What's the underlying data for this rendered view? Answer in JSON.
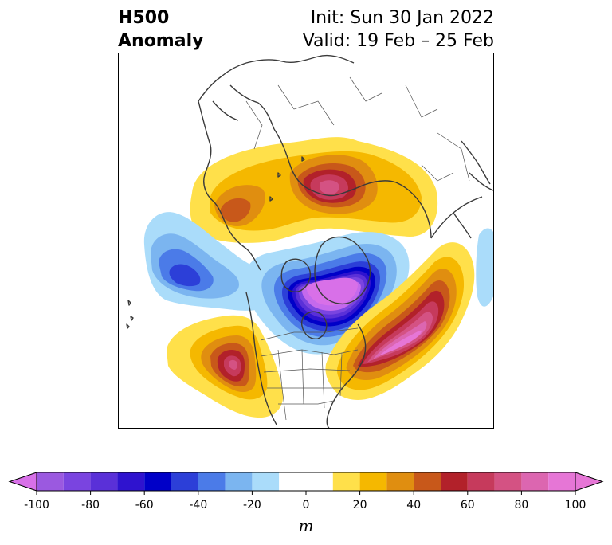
{
  "header": {
    "title_line1": "H500",
    "title_line2": "Anomaly",
    "init_label": "Init: Sun 30 Jan 2022",
    "valid_label": "Valid: 19 Feb – 25 Feb"
  },
  "map": {
    "projection": "north-polar-stereographic",
    "variable": "500 hPa geopotential height anomaly",
    "anomaly_centers": [
      {
        "sign": "positive",
        "region": "eastern Siberia / Kamchatka",
        "peak_m": 70
      },
      {
        "sign": "positive",
        "region": "Bering Sea / Alaska west",
        "peak_m": 40
      },
      {
        "sign": "negative",
        "region": "central Asia",
        "peak_m": -60
      },
      {
        "sign": "negative",
        "region": "Arctic / Greenland / northern Canada",
        "peak_m": -100
      },
      {
        "sign": "positive",
        "region": "western United States",
        "peak_m": 70
      },
      {
        "sign": "positive",
        "region": "North Atlantic / eastern US",
        "peak_m": 90
      }
    ]
  },
  "colorbar": {
    "unit": "m",
    "extend": "both",
    "ticks": [
      "-100",
      "-80",
      "-60",
      "-40",
      "-20",
      "0",
      "20",
      "40",
      "60",
      "80",
      "100"
    ],
    "levels": [
      -100,
      -90,
      -80,
      -70,
      -60,
      -50,
      -40,
      -30,
      -20,
      -10,
      10,
      20,
      30,
      40,
      50,
      60,
      70,
      80,
      90,
      100
    ],
    "colors": [
      "#9b59e0",
      "#7a44e0",
      "#5a30d8",
      "#2f13cf",
      "#0000c8",
      "#2c3fd8",
      "#4b7be8",
      "#7bb5f0",
      "#aadcfa",
      "#ffffff",
      "#ffe04a",
      "#f5b800",
      "#e08e10",
      "#c8581a",
      "#b2212a",
      "#c63a5c",
      "#d45283",
      "#dc66b0",
      "#e676d6"
    ],
    "under_color": "#d870e8",
    "over_color": "#e676d6"
  }
}
